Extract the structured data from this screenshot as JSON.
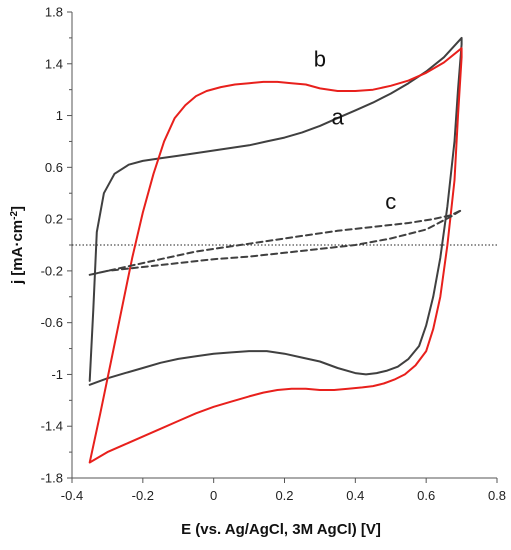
{
  "chart_data": {
    "type": "line",
    "xlabel": "E (vs. Ag/AgCl, 3M AgCl) [V]",
    "ylabel_main": "j [mA·cm",
    "ylabel_sup": "-2",
    "ylabel_end": "]",
    "xlim": [
      -0.4,
      0.8
    ],
    "ylim": [
      -1.8,
      1.8
    ],
    "xticks": [
      {
        "value": -0.4,
        "label": "-0.4"
      },
      {
        "value": -0.2,
        "label": "-0.2"
      },
      {
        "value": 0,
        "label": "0"
      },
      {
        "value": 0.2,
        "label": "0.2"
      },
      {
        "value": 0.4,
        "label": "0.4"
      },
      {
        "value": 0.6,
        "label": "0.6"
      },
      {
        "value": 0.8,
        "label": "0.8"
      }
    ],
    "yticks": [
      {
        "value": 1.8,
        "label": "1.8"
      },
      {
        "value": 1.4,
        "label": "1.4"
      },
      {
        "value": 1.0,
        "label": "1"
      },
      {
        "value": 0.6,
        "label": "0.6"
      },
      {
        "value": 0.2,
        "label": "0.2"
      },
      {
        "value": -0.2,
        "label": "-0.2"
      },
      {
        "value": -0.6,
        "label": "-0.6"
      },
      {
        "value": -1.0,
        "label": "-1"
      },
      {
        "value": -1.4,
        "label": "-1.4"
      },
      {
        "value": -1.8,
        "label": "-1.8"
      }
    ],
    "reference_line": {
      "y": 0,
      "style": "dotted"
    },
    "series": [
      {
        "name": "a",
        "color": "#404040",
        "dash": "solid",
        "x": [
          -0.35,
          -0.34,
          -0.33,
          -0.31,
          -0.28,
          -0.24,
          -0.2,
          -0.15,
          -0.1,
          -0.05,
          0.0,
          0.05,
          0.1,
          0.15,
          0.2,
          0.25,
          0.3,
          0.35,
          0.4,
          0.45,
          0.5,
          0.55,
          0.6,
          0.65,
          0.7,
          0.7,
          0.69,
          0.68,
          0.66,
          0.64,
          0.62,
          0.6,
          0.58,
          0.55,
          0.52,
          0.49,
          0.46,
          0.43,
          0.4,
          0.35,
          0.3,
          0.25,
          0.2,
          0.15,
          0.1,
          0.05,
          0.0,
          -0.05,
          -0.1,
          -0.15,
          -0.2,
          -0.25,
          -0.3,
          -0.35
        ],
        "y": [
          -1.05,
          -0.5,
          0.1,
          0.4,
          0.55,
          0.62,
          0.65,
          0.67,
          0.69,
          0.71,
          0.73,
          0.75,
          0.77,
          0.8,
          0.83,
          0.87,
          0.92,
          0.98,
          1.04,
          1.1,
          1.17,
          1.25,
          1.34,
          1.45,
          1.6,
          1.55,
          1.2,
          0.8,
          0.3,
          -0.1,
          -0.4,
          -0.62,
          -0.78,
          -0.88,
          -0.94,
          -0.97,
          -0.99,
          -1.0,
          -0.99,
          -0.95,
          -0.9,
          -0.87,
          -0.84,
          -0.82,
          -0.82,
          -0.83,
          -0.84,
          -0.86,
          -0.88,
          -0.91,
          -0.95,
          -0.99,
          -1.03,
          -1.08
        ]
      },
      {
        "name": "b",
        "color": "#e8201c",
        "dash": "solid",
        "x": [
          -0.35,
          -0.32,
          -0.29,
          -0.26,
          -0.23,
          -0.2,
          -0.17,
          -0.14,
          -0.11,
          -0.08,
          -0.05,
          -0.02,
          0.02,
          0.06,
          0.1,
          0.14,
          0.18,
          0.22,
          0.26,
          0.3,
          0.35,
          0.4,
          0.45,
          0.5,
          0.55,
          0.6,
          0.65,
          0.7,
          0.7,
          0.69,
          0.68,
          0.66,
          0.64,
          0.62,
          0.6,
          0.57,
          0.54,
          0.51,
          0.48,
          0.45,
          0.42,
          0.38,
          0.34,
          0.3,
          0.26,
          0.22,
          0.18,
          0.14,
          0.1,
          0.05,
          0.0,
          -0.05,
          -0.1,
          -0.15,
          -0.2,
          -0.25,
          -0.3,
          -0.35
        ],
        "y": [
          -1.68,
          -1.3,
          -0.9,
          -0.5,
          -0.1,
          0.25,
          0.55,
          0.8,
          0.98,
          1.08,
          1.15,
          1.19,
          1.22,
          1.24,
          1.25,
          1.26,
          1.26,
          1.25,
          1.24,
          1.21,
          1.19,
          1.19,
          1.2,
          1.23,
          1.27,
          1.33,
          1.41,
          1.52,
          1.45,
          1.0,
          0.5,
          0.0,
          -0.4,
          -0.65,
          -0.82,
          -0.93,
          -1.0,
          -1.04,
          -1.07,
          -1.09,
          -1.1,
          -1.11,
          -1.12,
          -1.12,
          -1.11,
          -1.11,
          -1.12,
          -1.14,
          -1.17,
          -1.21,
          -1.25,
          -1.3,
          -1.36,
          -1.42,
          -1.48,
          -1.54,
          -1.6,
          -1.68
        ]
      },
      {
        "name": "c",
        "color": "#404040",
        "dash": "dashed",
        "x": [
          -0.35,
          -0.25,
          -0.15,
          -0.05,
          0.05,
          0.15,
          0.25,
          0.35,
          0.45,
          0.55,
          0.62,
          0.67,
          0.7,
          0.67,
          0.6,
          0.5,
          0.4,
          0.3,
          0.2,
          0.1,
          0.0,
          -0.1,
          -0.2,
          -0.3,
          -0.35
        ],
        "y": [
          -0.23,
          -0.17,
          -0.11,
          -0.05,
          -0.01,
          0.03,
          0.07,
          0.11,
          0.14,
          0.17,
          0.2,
          0.23,
          0.27,
          0.22,
          0.12,
          0.05,
          0.0,
          -0.03,
          -0.06,
          -0.09,
          -0.11,
          -0.14,
          -0.17,
          -0.2,
          -0.23
        ]
      }
    ],
    "annotations": [
      {
        "text": "a",
        "x": 0.35,
        "y": 0.93
      },
      {
        "text": "b",
        "x": 0.3,
        "y": 1.38
      },
      {
        "text": "c",
        "x": 0.5,
        "y": 0.28
      }
    ]
  }
}
